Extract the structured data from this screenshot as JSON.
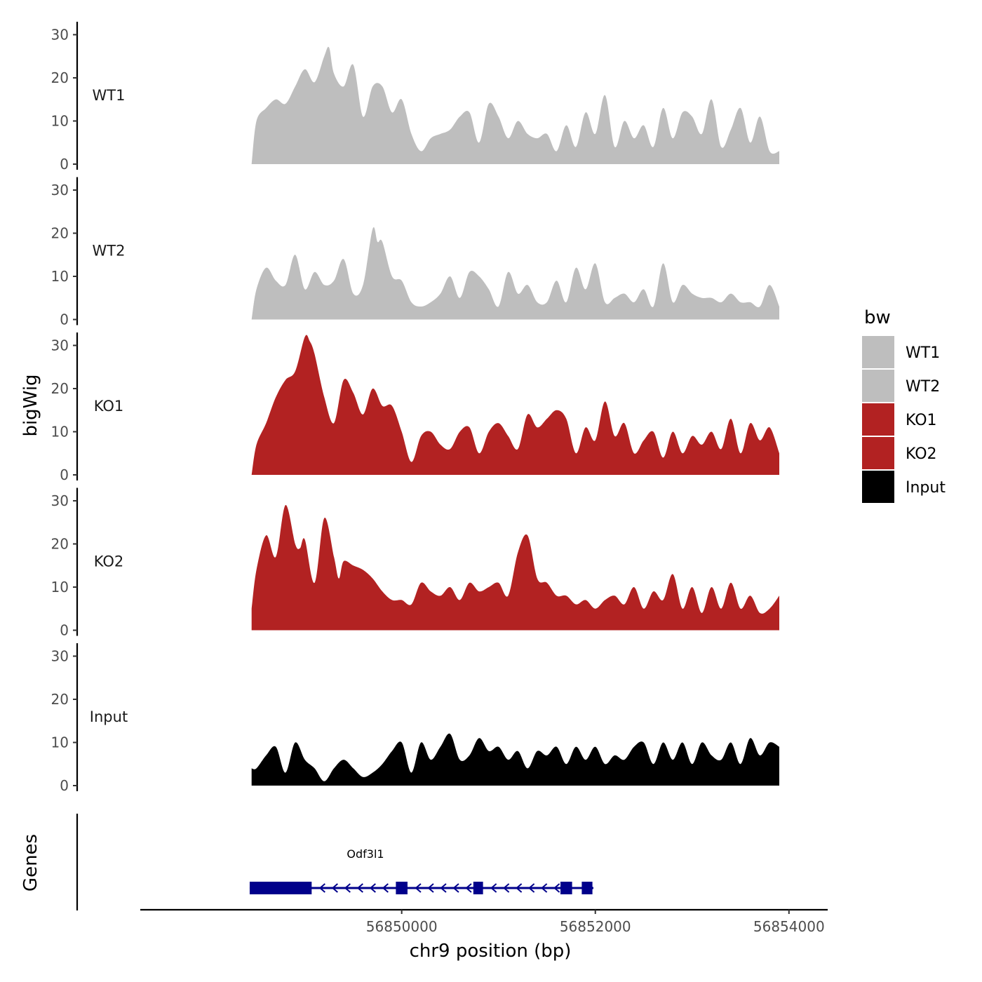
{
  "chart_data": {
    "type": "area",
    "title": "",
    "xlabel": "chr9 position (bp)",
    "ylabel": "bigWig",
    "genes_label": "Genes",
    "xlim": [
      56847300,
      56854400
    ],
    "ylim": [
      0,
      33
    ],
    "x_ticks": [
      56850000,
      56852000,
      56854000
    ],
    "x_tick_labels": [
      "56850000",
      "56852000",
      "56854000"
    ],
    "y_ticks": [
      0,
      10,
      20,
      30
    ],
    "y_tick_labels": [
      "0",
      "10",
      "20",
      "30"
    ],
    "grid": false,
    "legend": {
      "title": "bw",
      "position": "right",
      "entries": [
        {
          "label": "WT1",
          "color": "#bebebe"
        },
        {
          "label": "WT2",
          "color": "#bebebe"
        },
        {
          "label": "KO1",
          "color": "#b22222"
        },
        {
          "label": "KO2",
          "color": "#b22222"
        },
        {
          "label": "Input",
          "color": "#000000"
        }
      ]
    },
    "series": [
      {
        "name": "WT1",
        "color": "#bebebe",
        "x": [
          56848450,
          56848500,
          56848600,
          56848700,
          56848800,
          56848900,
          56849000,
          56849100,
          56849200,
          56849250,
          56849300,
          56849400,
          56849500,
          56849600,
          56849700,
          56849800,
          56849900,
          56850000,
          56850100,
          56850200,
          56850300,
          56850400,
          56850500,
          56850600,
          56850700,
          56850800,
          56850900,
          56851000,
          56851100,
          56851200,
          56851300,
          56851400,
          56851500,
          56851600,
          56851700,
          56851800,
          56851900,
          56852000,
          56852100,
          56852200,
          56852300,
          56852400,
          56852500,
          56852600,
          56852700,
          56852800,
          56852900,
          56853000,
          56853100,
          56853200,
          56853300,
          56853400,
          56853500,
          56853600,
          56853700,
          56853800,
          56853900
        ],
        "values": [
          0,
          10,
          13,
          15,
          14,
          18,
          22,
          19,
          25,
          27,
          21,
          18,
          23,
          11,
          18,
          18,
          12,
          15,
          7,
          3,
          6,
          7,
          8,
          11,
          12,
          5,
          14,
          11,
          6,
          10,
          7,
          6,
          7,
          3,
          9,
          4,
          12,
          7,
          16,
          4,
          10,
          6,
          9,
          4,
          13,
          6,
          12,
          11,
          7,
          15,
          4,
          8,
          13,
          5,
          11,
          3,
          3
        ]
      },
      {
        "name": "WT2",
        "color": "#bebebe",
        "x": [
          56848450,
          56848500,
          56848600,
          56848700,
          56848800,
          56848900,
          56849000,
          56849100,
          56849200,
          56849300,
          56849400,
          56849500,
          56849600,
          56849700,
          56849750,
          56849800,
          56849900,
          56850000,
          56850100,
          56850200,
          56850300,
          56850400,
          56850500,
          56850600,
          56850700,
          56850800,
          56850900,
          56851000,
          56851100,
          56851200,
          56851300,
          56851400,
          56851500,
          56851600,
          56851700,
          56851800,
          56851900,
          56852000,
          56852100,
          56852200,
          56852300,
          56852400,
          56852500,
          56852600,
          56852700,
          56852800,
          56852900,
          56853000,
          56853100,
          56853200,
          56853300,
          56853400,
          56853500,
          56853600,
          56853700,
          56853800,
          56853900
        ],
        "values": [
          0,
          7,
          12,
          9,
          8,
          15,
          7,
          11,
          8,
          9,
          14,
          6,
          8,
          21,
          18,
          18,
          10,
          9,
          4,
          3,
          4,
          6,
          10,
          5,
          11,
          10,
          7,
          3,
          11,
          6,
          8,
          4,
          4,
          9,
          4,
          12,
          7,
          13,
          4,
          5,
          6,
          4,
          7,
          3,
          13,
          4,
          8,
          6,
          5,
          5,
          4,
          6,
          4,
          4,
          3,
          8,
          3
        ]
      },
      {
        "name": "KO1",
        "color": "#b22222",
        "x": [
          56848450,
          56848500,
          56848600,
          56848700,
          56848800,
          56848900,
          56849000,
          56849050,
          56849100,
          56849200,
          56849300,
          56849400,
          56849500,
          56849600,
          56849700,
          56849800,
          56849900,
          56850000,
          56850100,
          56850200,
          56850300,
          56850400,
          56850500,
          56850600,
          56850700,
          56850800,
          56850900,
          56851000,
          56851100,
          56851200,
          56851300,
          56851400,
          56851500,
          56851600,
          56851700,
          56851800,
          56851900,
          56852000,
          56852100,
          56852200,
          56852300,
          56852400,
          56852500,
          56852600,
          56852700,
          56852800,
          56852900,
          56853000,
          56853100,
          56853200,
          56853300,
          56853400,
          56853500,
          56853600,
          56853700,
          56853800,
          56853900
        ],
        "values": [
          0,
          7,
          12,
          18,
          22,
          24,
          32,
          31,
          28,
          18,
          12,
          22,
          19,
          14,
          20,
          16,
          16,
          10,
          3,
          9,
          10,
          7,
          6,
          10,
          11,
          5,
          10,
          12,
          9,
          6,
          14,
          11,
          13,
          15,
          13,
          5,
          11,
          8,
          17,
          9,
          12,
          5,
          8,
          10,
          4,
          10,
          5,
          9,
          7,
          10,
          6,
          13,
          5,
          12,
          8,
          11,
          5
        ]
      },
      {
        "name": "KO2",
        "color": "#b22222",
        "x": [
          56848450,
          56848500,
          56848600,
          56848700,
          56848800,
          56848900,
          56848950,
          56849000,
          56849100,
          56849200,
          56849300,
          56849350,
          56849400,
          56849500,
          56849600,
          56849700,
          56849800,
          56849900,
          56850000,
          56850100,
          56850200,
          56850300,
          56850400,
          56850500,
          56850600,
          56850700,
          56850800,
          56850900,
          56851000,
          56851100,
          56851200,
          56851300,
          56851400,
          56851500,
          56851600,
          56851700,
          56851800,
          56851900,
          56852000,
          56852100,
          56852200,
          56852300,
          56852400,
          56852500,
          56852600,
          56852700,
          56852800,
          56852900,
          56853000,
          56853100,
          56853200,
          56853300,
          56853400,
          56853500,
          56853600,
          56853700,
          56853800,
          56853900
        ],
        "values": [
          5,
          14,
          22,
          17,
          29,
          20,
          19,
          21,
          11,
          26,
          17,
          12,
          16,
          15,
          14,
          12,
          9,
          7,
          7,
          6,
          11,
          9,
          8,
          10,
          7,
          11,
          9,
          10,
          11,
          8,
          18,
          22,
          12,
          11,
          8,
          8,
          6,
          7,
          5,
          7,
          8,
          6,
          10,
          5,
          9,
          7,
          13,
          5,
          10,
          4,
          10,
          5,
          11,
          5,
          8,
          4,
          5,
          8
        ]
      },
      {
        "name": "Input",
        "color": "#000000",
        "x": [
          56848450,
          56848500,
          56848600,
          56848700,
          56848800,
          56848900,
          56849000,
          56849100,
          56849200,
          56849300,
          56849400,
          56849500,
          56849600,
          56849700,
          56849800,
          56849900,
          56850000,
          56850100,
          56850200,
          56850300,
          56850400,
          56850500,
          56850600,
          56850700,
          56850800,
          56850900,
          56851000,
          56851100,
          56851200,
          56851300,
          56851400,
          56851500,
          56851600,
          56851700,
          56851800,
          56851900,
          56852000,
          56852100,
          56852200,
          56852300,
          56852400,
          56852500,
          56852600,
          56852700,
          56852800,
          56852900,
          56853000,
          56853100,
          56853200,
          56853300,
          56853400,
          56853500,
          56853600,
          56853700,
          56853800,
          56853900
        ],
        "values": [
          4,
          4,
          7,
          9,
          3,
          10,
          6,
          4,
          1,
          4,
          6,
          4,
          2,
          3,
          5,
          8,
          10,
          3,
          10,
          6,
          9,
          12,
          6,
          7,
          11,
          8,
          9,
          6,
          8,
          4,
          8,
          7,
          9,
          5,
          9,
          6,
          9,
          5,
          7,
          6,
          9,
          10,
          5,
          10,
          6,
          10,
          5,
          10,
          7,
          6,
          10,
          5,
          11,
          7,
          10,
          9
        ]
      }
    ],
    "gene": {
      "name": "Odf3l1",
      "strand": "-",
      "color": "#00008b",
      "start": 56848430,
      "end": 56851980,
      "exons": [
        [
          56848430,
          56849070
        ],
        [
          56849940,
          56850060
        ],
        [
          56850740,
          56850840
        ],
        [
          56851640,
          56851760
        ],
        [
          56851860,
          56851970
        ]
      ]
    }
  }
}
